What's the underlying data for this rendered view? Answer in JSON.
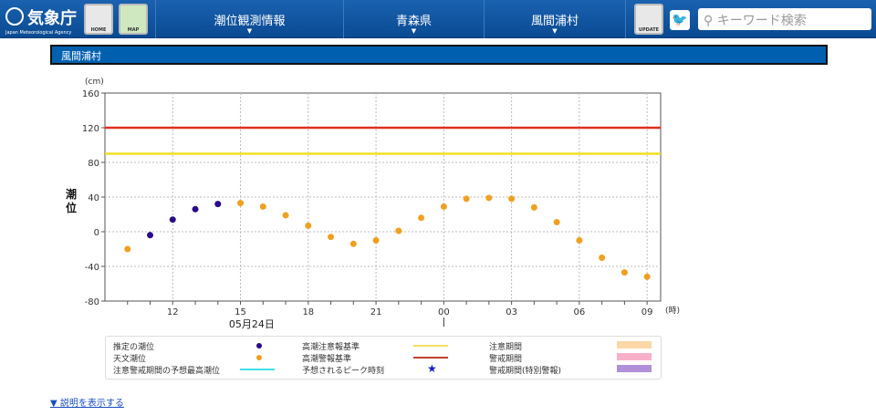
{
  "header": {
    "logo_ja": "気象庁",
    "logo_en": "Japan Meteorological Agency",
    "home_label": "HOME",
    "map_label": "MAP",
    "nav": [
      "潮位観測情報",
      "青森県",
      "風間浦村"
    ],
    "update_label": "UPDATE",
    "search_placeholder": "キーワード検索"
  },
  "title": "風間浦村",
  "chart_data": {
    "type": "scatter",
    "ylabel": "潮位",
    "yunit": "(cm)",
    "xunit": "(時)",
    "ylim": [
      -80,
      160
    ],
    "yticks": [
      160,
      120,
      80,
      40,
      0,
      -40,
      -80
    ],
    "xlim": [
      9,
      33.6
    ],
    "xticks": [
      {
        "h": 12,
        "label": "12"
      },
      {
        "h": 15,
        "label": "15"
      },
      {
        "h": 18,
        "label": "18"
      },
      {
        "h": 21,
        "label": "21"
      },
      {
        "h": 24,
        "label": "00"
      },
      {
        "h": 27,
        "label": "03"
      },
      {
        "h": 30,
        "label": "06"
      },
      {
        "h": 33,
        "label": "09"
      }
    ],
    "date_label": "05月24日",
    "grid": true,
    "reference_lines": [
      {
        "name": "高潮警報基準",
        "value": 120,
        "color": "#e03020"
      },
      {
        "name": "高潮注意報基準",
        "value": 90,
        "color": "#f0e020"
      }
    ],
    "series": [
      {
        "name": "推定の潮位",
        "color": "#2a0a8a",
        "x": [
          11,
          12,
          13,
          14
        ],
        "y": [
          -4,
          14,
          26,
          32
        ]
      },
      {
        "name": "天文潮位",
        "color": "#f0a020",
        "x": [
          10,
          15,
          16,
          17,
          18,
          19,
          20,
          21,
          22,
          23,
          24,
          25,
          26,
          27,
          28,
          29,
          30,
          31,
          32,
          33
        ],
        "y": [
          -20,
          33,
          29,
          19,
          7,
          -6,
          -14,
          -10,
          1,
          16,
          29,
          38,
          39,
          38,
          28,
          11,
          -10,
          -30,
          -47,
          -52
        ]
      }
    ]
  },
  "legend": {
    "items": [
      {
        "label": "推定の潮位",
        "color": "#2a0a8a"
      },
      {
        "label": "天文潮位",
        "color": "#f0a020"
      },
      {
        "label": "注意警戒期間の予想最高潮位",
        "color": "#40e0e8"
      },
      {
        "label": "高潮注意報基準",
        "color": "#f0e060"
      },
      {
        "label": "高潮警報基準",
        "color": "#c04030"
      },
      {
        "label": "予想されるピーク時刻",
        "color": "#1020c0"
      },
      {
        "label": "注意期間",
        "color": "#fcd8a8"
      },
      {
        "label": "警戒期間",
        "color": "#f8b0c8"
      },
      {
        "label": "警戒期間(特別警報)",
        "color": "#b090d8"
      }
    ]
  },
  "more_link": "▼ 説明を表示する"
}
